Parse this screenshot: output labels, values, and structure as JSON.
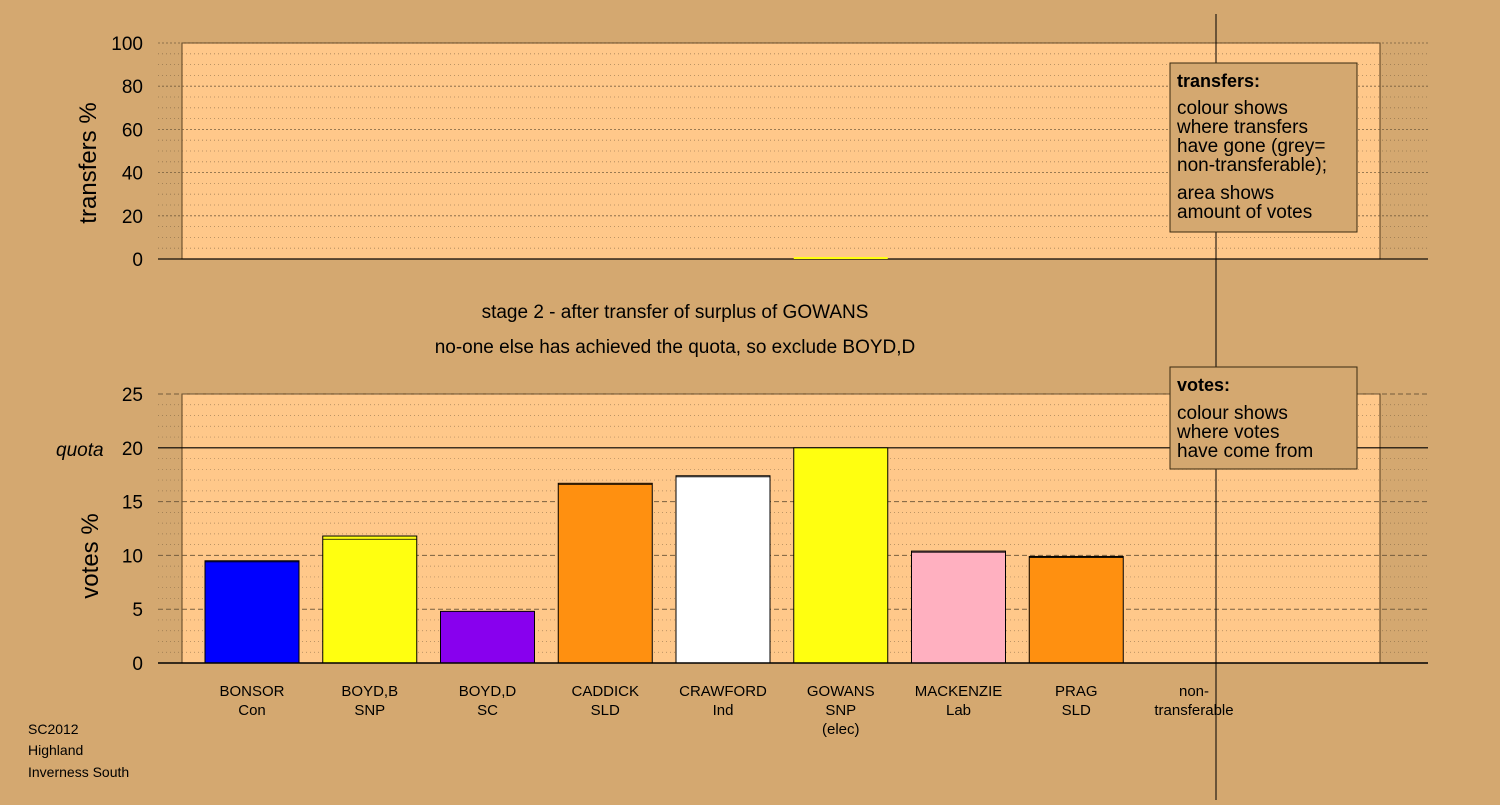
{
  "footer": {
    "line1": "SC2012",
    "line2": "Highland",
    "line3": "Inverness South"
  },
  "stage": {
    "line1": "stage 2 - after transfer of surplus of GOWANS",
    "line2": "no-one else has achieved the quota, so exclude BOYD,D"
  },
  "legends": {
    "transfers": {
      "title": "transfers:",
      "lines_a": [
        "colour shows",
        "where transfers",
        "have gone (grey=",
        "non-transferable);"
      ],
      "lines_b": [
        "area shows",
        "amount of votes"
      ]
    },
    "votes": {
      "title": "votes:",
      "lines": [
        "colour shows",
        "where votes",
        "have come from"
      ]
    }
  },
  "colors": {
    "background": "#d4a870",
    "plot_bg": "#ffc88a",
    "Con": "#0000ff",
    "SNP": "#ffff10",
    "SC": "#8800ee",
    "SLD": "#ff9010",
    "Ind": "#ffffff",
    "Lab": "#ffb0c0"
  },
  "chart_data": [
    {
      "type": "bar",
      "ylabel": "transfers %",
      "ylim": [
        0,
        100
      ],
      "yticks": [
        0,
        20,
        40,
        60,
        80,
        100
      ],
      "grid": true,
      "series": [
        {
          "values": [
            0,
            0,
            0,
            0,
            0,
            0.5,
            0,
            0,
            0
          ]
        }
      ],
      "bar_colors": [
        "#0000ff",
        "#ffff10",
        "#8800ee",
        "#ff9010",
        "#ffffff",
        "#ffff10",
        "#ffb0c0",
        "#ff9010",
        "#999999"
      ]
    },
    {
      "type": "bar",
      "ylabel": "votes %",
      "ylim": [
        0,
        25
      ],
      "yticks": [
        0,
        5,
        10,
        15,
        20,
        25
      ],
      "quota_label": "quota",
      "quota": 20,
      "grid": true,
      "categories": [
        {
          "name": "BONSOR",
          "party": "Con",
          "extra": ""
        },
        {
          "name": "BOYD,B",
          "party": "SNP",
          "extra": ""
        },
        {
          "name": "BOYD,D",
          "party": "SC",
          "extra": ""
        },
        {
          "name": "CADDICK",
          "party": "SLD",
          "extra": ""
        },
        {
          "name": "CRAWFORD",
          "party": "Ind",
          "extra": ""
        },
        {
          "name": "GOWANS",
          "party": "SNP",
          "extra": "(elec)"
        },
        {
          "name": "MACKENZIE",
          "party": "Lab",
          "extra": ""
        },
        {
          "name": "PRAG",
          "party": "SLD",
          "extra": ""
        },
        {
          "name": "non-",
          "party": "transferable",
          "extra": ""
        }
      ],
      "values": [
        9.5,
        11.8,
        4.8,
        16.7,
        17.4,
        20.0,
        10.4,
        9.9,
        0
      ],
      "transfer_increments": [
        0.1,
        0.3,
        0.0,
        0.1,
        0.1,
        0.0,
        0.1,
        0.1,
        0.0
      ],
      "bar_colors": [
        "#0000ff",
        "#ffff10",
        "#8800ee",
        "#ff9010",
        "#ffffff",
        "#ffff10",
        "#ffb0c0",
        "#ff9010",
        "#999999"
      ]
    }
  ]
}
